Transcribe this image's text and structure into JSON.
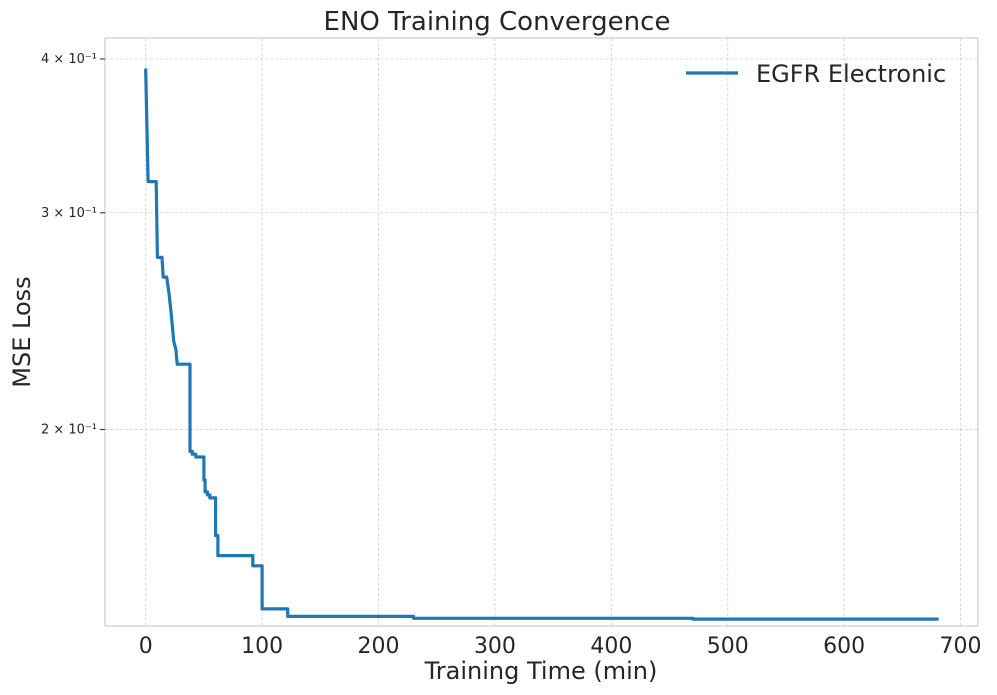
{
  "chart_data": {
    "type": "line",
    "title": "ENO Training Convergence",
    "xlabel": "Training Time (min)",
    "ylabel": "MSE Loss",
    "yscale": "log",
    "xlim": [
      -35,
      715
    ],
    "ylim": [
      0.1385,
      0.416
    ],
    "x_ticks": [
      0,
      100,
      200,
      300,
      400,
      500,
      600,
      700
    ],
    "y_ticks": [
      {
        "value": 0.2,
        "label": "2 × 10⁻¹"
      },
      {
        "value": 0.3,
        "label": "3 × 10⁻¹"
      },
      {
        "value": 0.4,
        "label": "4 × 10⁻¹"
      }
    ],
    "grid": true,
    "legend_position": "top-right",
    "series": [
      {
        "name": "EGFR Electronic",
        "color": "#1f77b4",
        "x": [
          0,
          2,
          8,
          9,
          10,
          14,
          15,
          18,
          20,
          22,
          24,
          26,
          27,
          38,
          38,
          40,
          40,
          43,
          43,
          50,
          50,
          51,
          51,
          53,
          53,
          55,
          55,
          60,
          60,
          62,
          62,
          65,
          65,
          92,
          92,
          100,
          100,
          122,
          122,
          230,
          230,
          470,
          470,
          680
        ],
        "y": [
          0.392,
          0.318,
          0.318,
          0.318,
          0.276,
          0.276,
          0.266,
          0.266,
          0.258,
          0.248,
          0.236,
          0.232,
          0.226,
          0.226,
          0.192,
          0.192,
          0.191,
          0.191,
          0.19,
          0.19,
          0.182,
          0.182,
          0.178,
          0.178,
          0.177,
          0.177,
          0.176,
          0.176,
          0.164,
          0.164,
          0.158,
          0.158,
          0.158,
          0.158,
          0.155,
          0.155,
          0.143,
          0.143,
          0.141,
          0.141,
          0.1405,
          0.1405,
          0.1403,
          0.1403
        ]
      }
    ]
  }
}
